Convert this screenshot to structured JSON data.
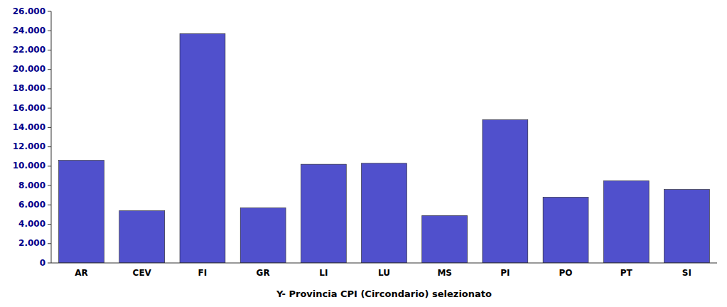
{
  "chart_data": {
    "type": "bar",
    "xlabel": "Y- Provincia CPI (Circondario) selezionato",
    "categories": [
      "AR",
      "CEV",
      "FI",
      "GR",
      "LI",
      "LU",
      "MS",
      "PI",
      "PO",
      "PT",
      "SI"
    ],
    "values": [
      10600,
      5400,
      23700,
      5700,
      10200,
      10300,
      4900,
      14800,
      6800,
      8500,
      7600
    ],
    "color": "#5050CC",
    "ylim": [
      0,
      26000
    ],
    "yticks": [
      0,
      {
        "value": 2000,
        "label": "2.000"
      },
      {
        "value": 4000,
        "label": "4.000"
      },
      {
        "value": 6000,
        "label": "6.000"
      },
      {
        "value": 8000,
        "label": "8.000"
      },
      {
        "value": 10000,
        "label": "10.000"
      },
      {
        "value": 12000,
        "label": "12.000"
      },
      {
        "value": 14000,
        "label": "14.000"
      },
      {
        "value": 16000,
        "label": "16.000"
      },
      {
        "value": 18000,
        "label": "18.000"
      },
      {
        "value": 20000,
        "label": "20.000"
      },
      {
        "value": 22000,
        "label": "22.000"
      },
      {
        "value": 24000,
        "label": "24.000"
      },
      {
        "value": 26000,
        "label": "26.000"
      }
    ],
    "grid": false
  }
}
